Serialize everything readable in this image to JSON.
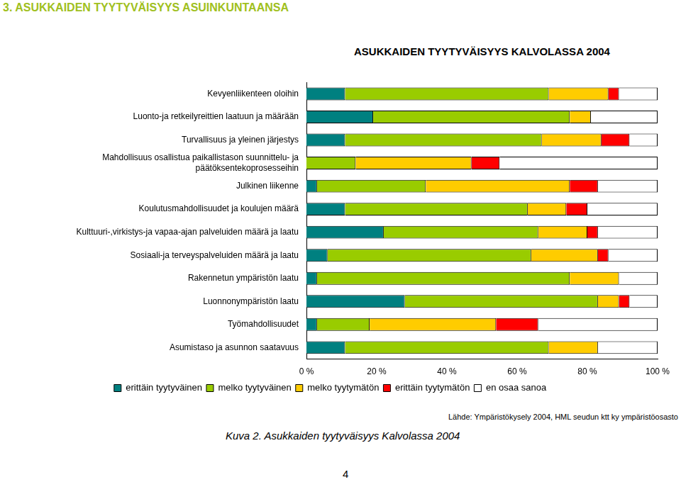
{
  "page": {
    "header": "3. ASUKKAIDEN TYYTYVÄISYYS ASUINKUNTAANSA",
    "source": "Lähde: Ympäristökysely 2004, HML seudun ktt ky ympäristöosasto",
    "caption": "Kuva 2. Asukkaiden tyytyväisyys Kalvolassa 2004",
    "page_number": 4
  },
  "chart_data": {
    "type": "bar",
    "orientation": "horizontal",
    "stacked": true,
    "title": "ASUKKAIDEN TYYTYVÄISYYS KALVOLASSA 2004",
    "categories": [
      "Kevyenliikenteen oloihin",
      "Luonto-ja retkeilyreittien laatuun ja määrään",
      "Turvallisuus ja yleinen järjestys",
      [
        "Mahdollisuus osallistua paikallistason suunnittelu- ja",
        "päätöksentekoprosesseihin"
      ],
      "Julkinen liikenne",
      "Koulutusmahdollisuudet ja koulujen määrä",
      "Kulttuuri-,virkistys-ja vapaa-ajan palveluiden määrä ja laatu",
      "Sosiaali-ja terveyspalveluiden määrä ja laatu",
      "Rakennetun ympäristön laatu",
      "Luonnonympäristön laatu",
      "Työmahdollisuudet",
      "Asumistaso ja asunnon saatavuus"
    ],
    "series": [
      {
        "name": "erittäin tyytyväinen",
        "color": "#008080",
        "values": [
          11,
          19,
          11,
          0,
          3,
          11,
          22,
          6,
          3,
          28,
          3,
          11
        ]
      },
      {
        "name": "melko tyytyväinen",
        "color": "#99cc00",
        "values": [
          58,
          56,
          56,
          14,
          31,
          52,
          44,
          58,
          72,
          55,
          15,
          58
        ]
      },
      {
        "name": "melko tyytymätön",
        "color": "#ffcc00",
        "values": [
          17,
          6,
          17,
          33,
          41,
          11,
          14,
          19,
          14,
          6,
          36,
          14
        ]
      },
      {
        "name": "erittäin tyytymätön",
        "color": "#ff0000",
        "values": [
          3,
          0,
          8,
          8,
          8,
          6,
          3,
          3,
          0,
          3,
          12,
          0
        ]
      },
      {
        "name": "en osaa sanoa",
        "color": "#ffffff",
        "values": [
          11,
          19,
          8,
          45,
          17,
          20,
          17,
          14,
          11,
          8,
          34,
          17
        ]
      }
    ],
    "xlim": [
      0,
      100
    ],
    "xticks": [
      {
        "value": 0,
        "label": "0 %"
      },
      {
        "value": 20,
        "label": "20 %"
      },
      {
        "value": 40,
        "label": "40 %"
      },
      {
        "value": 60,
        "label": "60 %"
      },
      {
        "value": 80,
        "label": "80 %"
      },
      {
        "value": 100,
        "label": "100 %"
      }
    ],
    "grid": false,
    "legend": "bottom",
    "data_labels": false
  }
}
